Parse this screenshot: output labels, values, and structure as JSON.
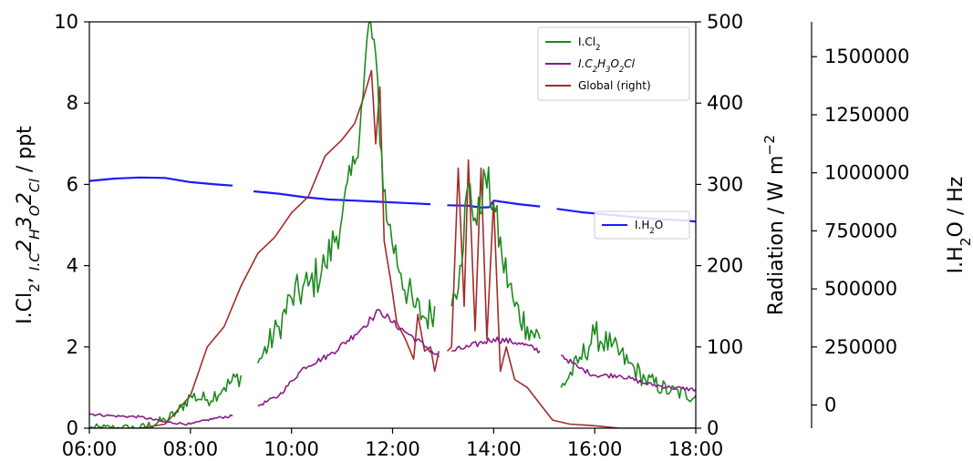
{
  "chart_data": {
    "type": "line",
    "x_axis": {
      "ticks": [
        "06:00",
        "08:00",
        "10:00",
        "12:00",
        "14:00",
        "16:00",
        "18:00"
      ],
      "range": [
        "06:00",
        "18:00"
      ]
    },
    "y_left": {
      "label_parts": [
        "I.Cl",
        "2",
        ", ",
        "I.C",
        "2",
        "H",
        "3",
        "O",
        "2",
        "Cl",
        "  / ppt"
      ],
      "range": [
        0,
        10
      ],
      "ticks": [
        "0",
        "2",
        "4",
        "6",
        "8",
        "10"
      ]
    },
    "y_right1": {
      "label_parts": [
        "Radiation / W m",
        "−2"
      ],
      "range": [
        0,
        500
      ],
      "ticks": [
        "0",
        "100",
        "200",
        "300",
        "400",
        "500"
      ]
    },
    "y_right2": {
      "label_parts": [
        "I.H",
        "2",
        "O / Hz"
      ],
      "range": [
        -100000,
        1650000
      ],
      "ticks": [
        "0",
        "250000",
        "500000",
        "750000",
        "1000000",
        "1250000",
        "1500000"
      ]
    },
    "grid": false,
    "legend_main": {
      "placement": "top-right",
      "entries": [
        {
          "parts": [
            "I.Cl",
            "2"
          ],
          "color": "#1e8a1e"
        },
        {
          "parts": [
            "I.C",
            "2",
            "H",
            "3",
            "O",
            "2",
            "Cl"
          ],
          "italic": true,
          "color": "#8b1a8b"
        },
        {
          "parts": [
            "Global (right)"
          ],
          "color": "#a52a2a"
        }
      ]
    },
    "legend_h2o": {
      "placement": "center-right",
      "entries": [
        {
          "parts": [
            "I.H",
            "2",
            "O"
          ],
          "color": "#1a1aff"
        }
      ]
    },
    "series": [
      {
        "name": "I.Cl2",
        "axis": "left",
        "color": "#1e8a1e",
        "noise": 0.35,
        "points": [
          [
            "06:00",
            0.0
          ],
          [
            "06:30",
            0.0
          ],
          [
            "07:00",
            0.0
          ],
          [
            "07:30",
            0.2
          ],
          [
            "07:45",
            0.4
          ],
          [
            "08:00",
            0.8
          ],
          [
            "08:20",
            0.7
          ],
          [
            "08:40",
            1.0
          ],
          [
            "09:00",
            1.3
          ],
          null,
          [
            "09:20",
            1.6
          ],
          [
            "09:45",
            2.5
          ],
          [
            "10:00",
            3.2
          ],
          [
            "10:20",
            3.5
          ],
          [
            "10:40",
            4.0
          ],
          [
            "11:00",
            5.2
          ],
          [
            "11:15",
            6.5
          ],
          [
            "11:25",
            8.2
          ],
          [
            "11:32",
            10.0
          ],
          [
            "11:40",
            9.2
          ],
          [
            "11:45",
            7.0
          ],
          [
            "11:55",
            5.0
          ],
          [
            "12:10",
            3.8
          ],
          [
            "12:25",
            3.0
          ],
          [
            "12:40",
            2.7
          ],
          [
            "12:50",
            3.0
          ],
          null,
          [
            "13:10",
            3.0
          ],
          [
            "13:20",
            4.0
          ],
          [
            "13:30",
            6.0
          ],
          [
            "13:40",
            5.0
          ],
          [
            "13:50",
            6.2
          ],
          [
            "14:00",
            5.5
          ],
          [
            "14:10",
            4.2
          ],
          [
            "14:25",
            3.0
          ],
          [
            "14:40",
            2.5
          ],
          [
            "14:55",
            2.2
          ],
          null,
          [
            "15:20",
            1.0
          ],
          [
            "15:40",
            1.6
          ],
          [
            "16:00",
            2.3
          ],
          [
            "16:20",
            2.0
          ],
          [
            "16:40",
            1.6
          ],
          [
            "17:00",
            1.2
          ],
          [
            "17:30",
            0.9
          ],
          [
            "18:00",
            0.8
          ]
        ]
      },
      {
        "name": "I.C2H3O2Cl",
        "axis": "left",
        "color": "#8b1a8b",
        "noise": 0.08,
        "points": [
          [
            "06:00",
            0.35
          ],
          [
            "06:30",
            0.3
          ],
          [
            "07:00",
            0.28
          ],
          [
            "07:30",
            0.15
          ],
          [
            "08:00",
            0.1
          ],
          [
            "08:30",
            0.25
          ],
          [
            "08:50",
            0.3
          ],
          null,
          [
            "09:20",
            0.55
          ],
          [
            "09:45",
            0.8
          ],
          [
            "10:15",
            1.5
          ],
          [
            "10:45",
            1.8
          ],
          [
            "11:15",
            2.3
          ],
          [
            "11:35",
            2.7
          ],
          [
            "11:45",
            2.9
          ],
          [
            "12:00",
            2.6
          ],
          [
            "12:20",
            2.3
          ],
          [
            "12:40",
            2.0
          ],
          [
            "12:55",
            1.75
          ],
          null,
          [
            "13:10",
            1.9
          ],
          [
            "13:30",
            2.0
          ],
          [
            "14:00",
            2.2
          ],
          [
            "14:30",
            2.1
          ],
          [
            "14:55",
            1.9
          ],
          null,
          [
            "15:20",
            1.8
          ],
          [
            "15:40",
            1.5
          ],
          [
            "16:00",
            1.3
          ],
          [
            "16:30",
            1.3
          ],
          [
            "17:00",
            1.1
          ],
          [
            "17:30",
            1.0
          ],
          [
            "18:00",
            0.95
          ]
        ]
      },
      {
        "name": "Global (right)",
        "axis": "right1",
        "color": "#a52a2a",
        "noise": 0,
        "points": [
          [
            "06:00",
            0
          ],
          [
            "06:30",
            0
          ],
          [
            "07:00",
            0
          ],
          [
            "07:30",
            5
          ],
          [
            "08:00",
            40
          ],
          [
            "08:20",
            100
          ],
          [
            "08:40",
            125
          ],
          [
            "09:00",
            175
          ],
          [
            "09:20",
            215
          ],
          [
            "09:40",
            235
          ],
          [
            "10:00",
            265
          ],
          [
            "10:20",
            285
          ],
          [
            "10:40",
            335
          ],
          [
            "11:00",
            355
          ],
          [
            "11:15",
            375
          ],
          [
            "11:25",
            405
          ],
          [
            "11:35",
            440
          ],
          [
            "11:40",
            350
          ],
          [
            "11:45",
            420
          ],
          [
            "11:50",
            230
          ],
          [
            "11:58",
            180
          ],
          [
            "12:05",
            130
          ],
          [
            "12:15",
            110
          ],
          [
            "12:25",
            85
          ],
          [
            "12:30",
            140
          ],
          [
            "12:38",
            95
          ],
          [
            "12:45",
            100
          ],
          [
            "12:50",
            70
          ],
          [
            "12:55",
            95
          ],
          null,
          [
            "13:05",
            95
          ],
          [
            "13:10",
            100
          ],
          [
            "13:18",
            320
          ],
          [
            "13:25",
            150
          ],
          [
            "13:30",
            330
          ],
          [
            "13:38",
            120
          ],
          [
            "13:45",
            320
          ],
          [
            "13:52",
            110
          ],
          [
            "14:00",
            280
          ],
          [
            "14:08",
            70
          ],
          [
            "14:15",
            100
          ],
          [
            "14:25",
            60
          ],
          [
            "14:40",
            50
          ],
          [
            "14:55",
            30
          ],
          [
            "15:10",
            10
          ],
          [
            "15:30",
            5
          ],
          [
            "16:00",
            3
          ],
          [
            "16:30",
            0
          ],
          [
            "17:00",
            0
          ],
          [
            "18:00",
            0
          ]
        ]
      },
      {
        "name": "I.H2O",
        "axis": "right2",
        "color": "#1a1aff",
        "noise": 0,
        "points": [
          [
            "06:00",
            965000
          ],
          [
            "06:30",
            975000
          ],
          [
            "07:00",
            980000
          ],
          [
            "07:30",
            978000
          ],
          [
            "08:00",
            960000
          ],
          [
            "08:30",
            950000
          ],
          [
            "08:50",
            945000
          ],
          null,
          [
            "09:15",
            920000
          ],
          [
            "09:45",
            910000
          ],
          [
            "10:15",
            895000
          ],
          [
            "10:45",
            885000
          ],
          [
            "11:15",
            880000
          ],
          [
            "11:45",
            875000
          ],
          [
            "12:15",
            870000
          ],
          [
            "12:45",
            865000
          ],
          null,
          [
            "13:05",
            860000
          ],
          [
            "13:30",
            858000
          ],
          [
            "13:45",
            850000
          ],
          [
            "13:55",
            852000
          ],
          [
            "14:00",
            880000
          ],
          [
            "14:30",
            865000
          ],
          [
            "14:55",
            855000
          ],
          null,
          [
            "15:15",
            845000
          ],
          [
            "15:45",
            830000
          ],
          [
            "16:15",
            820000
          ],
          [
            "16:45",
            810000
          ],
          [
            "17:15",
            800000
          ],
          [
            "17:45",
            795000
          ],
          [
            "18:00",
            790000
          ]
        ]
      }
    ]
  }
}
